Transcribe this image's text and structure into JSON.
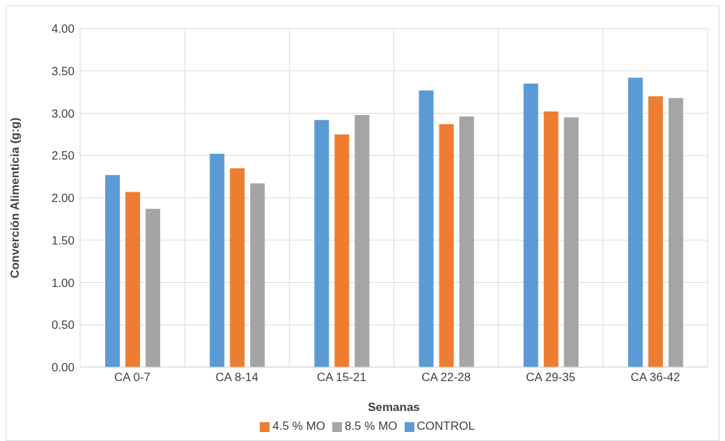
{
  "chart_data": {
    "type": "bar",
    "xlabel": "Semanas",
    "ylabel": "Converción Alimenticia (g:g)",
    "categories": [
      "CA 0-7",
      "CA 8-14",
      "CA 15-21",
      "CA 22-28",
      "CA 29-35",
      "CA 36-42"
    ],
    "series": [
      {
        "name": "CONTROL",
        "color": "#5b9bd5",
        "values": [
          2.27,
          2.52,
          2.92,
          3.27,
          3.35,
          3.42
        ]
      },
      {
        "name": "4.5 % MO",
        "color": "#ed7d31",
        "values": [
          2.07,
          2.35,
          2.75,
          2.87,
          3.02,
          3.2
        ]
      },
      {
        "name": "8.5 % MO",
        "color": "#a5a5a5",
        "values": [
          1.87,
          2.17,
          2.98,
          2.96,
          2.95,
          3.18
        ]
      }
    ],
    "ylim": [
      0,
      4
    ],
    "yticks": [
      {
        "value": 0,
        "label": "0.00"
      },
      {
        "value": 0.5,
        "label": "0.50"
      },
      {
        "value": 1,
        "label": "1.00"
      },
      {
        "value": 1.5,
        "label": "1.50"
      },
      {
        "value": 2,
        "label": "2.00"
      },
      {
        "value": 2.5,
        "label": "2.50"
      },
      {
        "value": 3,
        "label": "3.00"
      },
      {
        "value": 3.5,
        "label": "3.50"
      },
      {
        "value": 4,
        "label": "4.00"
      }
    ],
    "grid": true,
    "legend": "bottom"
  }
}
